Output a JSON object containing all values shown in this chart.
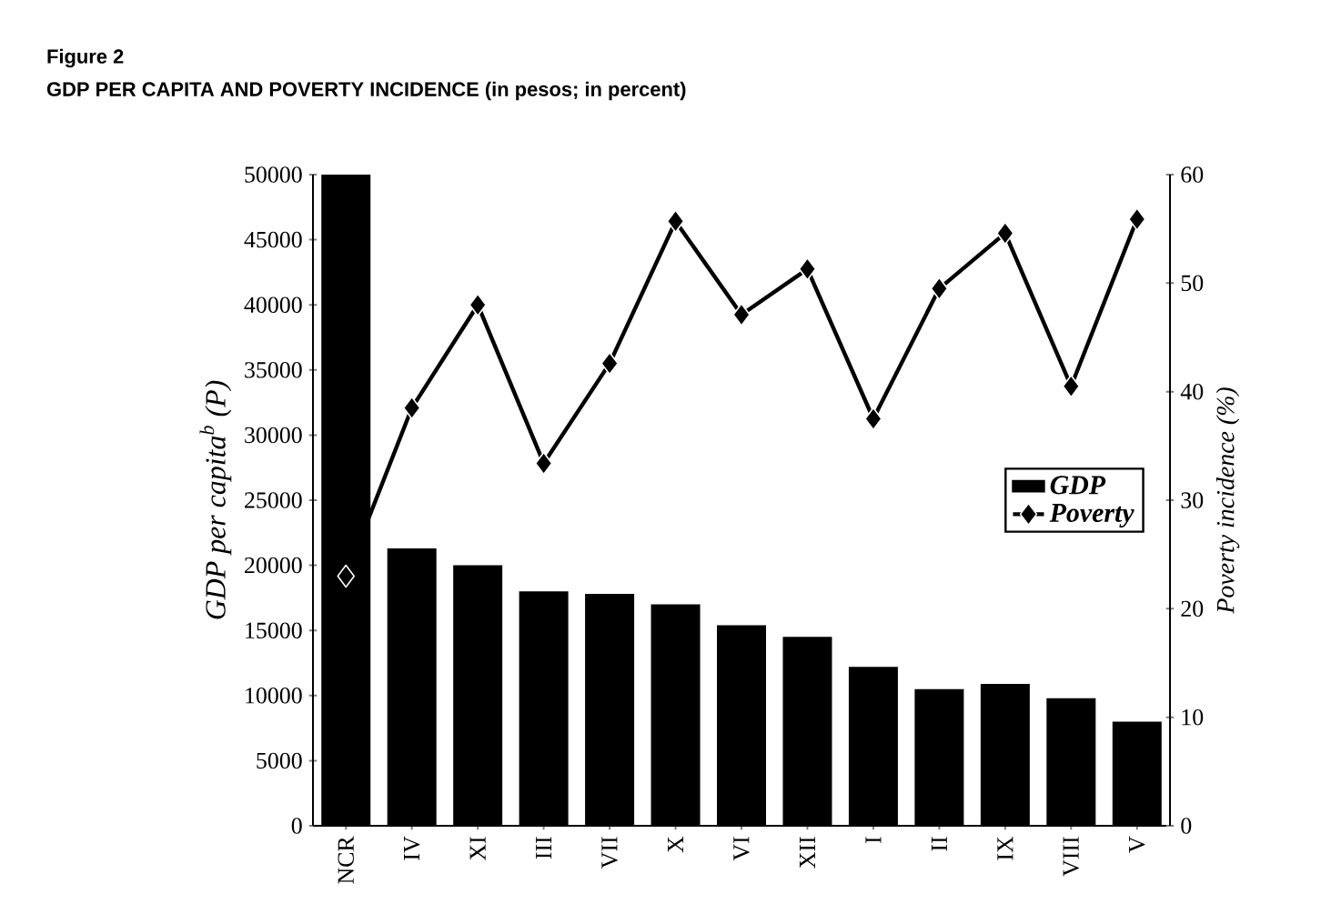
{
  "chart_data": {
    "type": "bar",
    "title": "Figure 2",
    "subtitle": "GDP PER CAPITA AND POVERTY INCIDENCE (in pesos; in percent)",
    "ylabel": "GDP per capita$^{b}$ (P)",
    "y2label": "Poverty incidence (%)",
    "categories": [
      "NCR",
      "IV",
      "XI",
      "III",
      "VII",
      "X",
      "VI",
      "XII",
      "I",
      "II",
      "IX",
      "VIII",
      "V"
    ],
    "series": [
      {
        "name": "GDP",
        "color": "#000000",
        "values": [
          50000,
          21300,
          20000,
          18000,
          17800,
          17000,
          15400,
          14500,
          12200,
          10500,
          10900,
          9800,
          8000
        ]
      },
      {
        "name": "Poverty",
        "type": "line",
        "axis": "y2",
        "color": "#000000",
        "values": [
          23,
          38.5,
          48,
          33.4,
          42.6,
          55.7,
          47.1,
          51.3,
          37.5,
          49.5,
          54.6,
          40.5,
          55.9
        ]
      }
    ],
    "ylim": [
      0,
      50000
    ],
    "yticks": [
      0,
      5000,
      10000,
      15000,
      20000,
      25000,
      30000,
      35000,
      40000,
      45000,
      50000
    ],
    "y2lim": [
      0,
      60
    ],
    "y2ticks": [
      0,
      10,
      20,
      30,
      40,
      50,
      60
    ],
    "grid": false,
    "legend": "right",
    "marker": "diamond",
    "line_style": "solid"
  }
}
